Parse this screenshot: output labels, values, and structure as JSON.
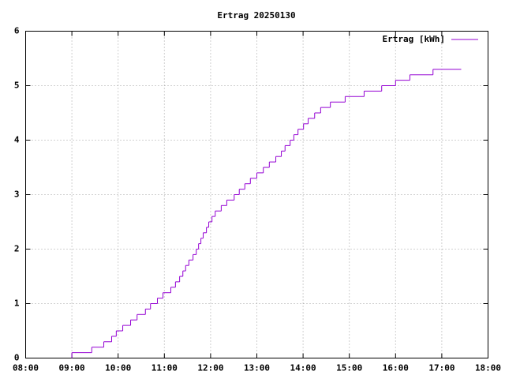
{
  "chart_data": {
    "type": "step",
    "title": "Ertrag 20250130",
    "series": [
      {
        "name": "Ertrag [kWh]",
        "color": "#9400d3",
        "x": [
          9.0,
          9.0,
          9.43,
          9.69,
          9.86,
          9.96,
          10.1,
          10.27,
          10.41,
          10.59,
          10.7,
          10.85,
          10.97,
          11.14,
          11.24,
          11.33,
          11.4,
          11.46,
          11.53,
          11.62,
          11.69,
          11.74,
          11.79,
          11.84,
          11.91,
          11.96,
          12.03,
          12.1,
          12.23,
          12.35,
          12.51,
          12.62,
          12.74,
          12.86,
          13.0,
          13.14,
          13.27,
          13.41,
          13.53,
          13.61,
          13.72,
          13.8,
          13.89,
          14.01,
          14.11,
          14.25,
          14.38,
          14.59,
          14.91,
          15.32,
          15.7,
          16.0,
          16.31,
          16.81,
          17.42
        ],
        "values": [
          0,
          0.1,
          0.2,
          0.3,
          0.4,
          0.5,
          0.6,
          0.7,
          0.8,
          0.9,
          1.0,
          1.1,
          1.2,
          1.3,
          1.4,
          1.5,
          1.6,
          1.7,
          1.8,
          1.9,
          2.0,
          2.1,
          2.2,
          2.3,
          2.4,
          2.5,
          2.6,
          2.7,
          2.8,
          2.9,
          3.0,
          3.1,
          3.2,
          3.3,
          3.4,
          3.5,
          3.6,
          3.7,
          3.8,
          3.9,
          4.0,
          4.1,
          4.2,
          4.3,
          4.4,
          4.5,
          4.6,
          4.7,
          4.8,
          4.9,
          5.0,
          5.1,
          5.2,
          5.3,
          5.3
        ]
      }
    ],
    "xlim": [
      8,
      18
    ],
    "xticks": [
      {
        "value": 8,
        "label": "08:00"
      },
      {
        "value": 9,
        "label": "09:00"
      },
      {
        "value": 10,
        "label": "10:00"
      },
      {
        "value": 11,
        "label": "11:00"
      },
      {
        "value": 12,
        "label": "12:00"
      },
      {
        "value": 13,
        "label": "13:00"
      },
      {
        "value": 14,
        "label": "14:00"
      },
      {
        "value": 15,
        "label": "15:00"
      },
      {
        "value": 16,
        "label": "16:00"
      },
      {
        "value": 17,
        "label": "17:00"
      },
      {
        "value": 18,
        "label": "18:00"
      }
    ],
    "ylim": [
      0,
      6
    ],
    "yticks": [
      0,
      1,
      2,
      3,
      4,
      5,
      6
    ],
    "grid": true,
    "legend": "top-right"
  }
}
